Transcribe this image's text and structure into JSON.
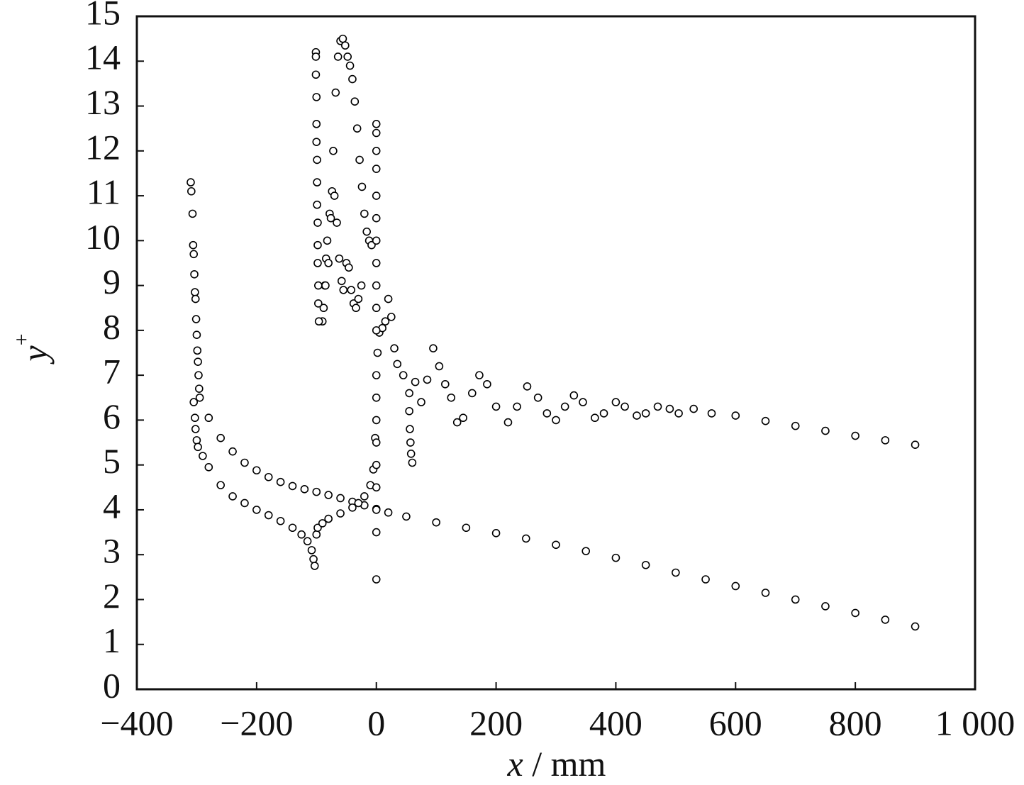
{
  "chart_data": {
    "type": "scatter",
    "xlabel": {
      "var": "x",
      "unit": " / mm"
    },
    "ylabel": {
      "base": "y",
      "sup": "+"
    },
    "xlim": [
      -400,
      1000
    ],
    "ylim": [
      0,
      15
    ],
    "xticks": [
      {
        "value": -400,
        "label": "−400"
      },
      {
        "value": -200,
        "label": "−200"
      },
      0,
      200,
      400,
      600,
      800,
      {
        "value": 1000,
        "label": "1 000"
      }
    ],
    "yticks": [
      0,
      1,
      2,
      3,
      4,
      5,
      6,
      7,
      8,
      9,
      10,
      11,
      12,
      13,
      14,
      15
    ],
    "series": [
      {
        "color": "#000000",
        "x": [
          -310,
          -309,
          -307,
          -306,
          -305,
          -304,
          -303,
          -302,
          -301,
          -300,
          -299,
          -298,
          -297,
          -296,
          -295,
          -280,
          -260,
          -240,
          -220,
          -200,
          -180,
          -160,
          -140,
          -120,
          -100,
          -80,
          -60,
          -40,
          -20,
          0,
          20,
          50,
          100,
          150,
          200,
          250,
          300,
          350,
          400,
          450,
          500,
          550,
          600,
          650,
          700,
          750,
          800,
          850,
          900
        ],
        "values": [
          11.3,
          11.1,
          10.6,
          9.9,
          9.7,
          9.25,
          8.85,
          8.7,
          8.25,
          7.9,
          7.55,
          7.3,
          7.0,
          6.7,
          6.5,
          6.05,
          5.6,
          5.3,
          5.05,
          4.88,
          4.73,
          4.62,
          4.53,
          4.46,
          4.4,
          4.33,
          4.26,
          4.18,
          4.1,
          4.02,
          3.94,
          3.85,
          3.72,
          3.6,
          3.48,
          3.36,
          3.22,
          3.08,
          2.93,
          2.77,
          2.6,
          2.45,
          2.3,
          2.15,
          2.0,
          1.85,
          1.7,
          1.55,
          1.4
        ]
      },
      {
        "color": "#000000",
        "x": [
          -305,
          -303,
          -302,
          -300,
          -298,
          -290,
          -280,
          -260,
          -240,
          -220,
          -200,
          -180,
          -160,
          -140,
          -125,
          -115,
          -108,
          -105,
          -103,
          -100,
          -98,
          -90,
          -80,
          -60,
          -40,
          -30,
          -20,
          -10,
          -5,
          -2,
          0,
          2,
          5,
          10,
          15,
          20,
          25,
          30,
          35,
          45,
          55,
          65,
          75,
          85,
          95,
          105,
          115,
          125,
          135,
          145,
          160,
          172,
          185,
          200,
          220,
          235,
          252,
          270,
          285,
          300,
          315,
          330,
          345,
          365,
          380,
          400,
          415,
          435,
          450,
          470,
          490,
          505,
          530,
          560,
          600,
          650,
          700,
          750,
          800,
          850,
          900
        ],
        "values": [
          6.4,
          6.05,
          5.8,
          5.55,
          5.4,
          5.2,
          4.95,
          4.55,
          4.3,
          4.15,
          4.0,
          3.88,
          3.75,
          3.6,
          3.45,
          3.3,
          3.1,
          2.9,
          2.75,
          3.45,
          3.6,
          3.7,
          3.8,
          3.92,
          4.05,
          4.15,
          4.3,
          4.55,
          4.9,
          5.6,
          6.5,
          7.5,
          7.95,
          8.05,
          8.2,
          8.7,
          8.3,
          7.6,
          7.25,
          7.0,
          6.6,
          6.85,
          6.4,
          6.9,
          7.6,
          7.2,
          6.8,
          6.5,
          5.95,
          6.05,
          6.6,
          7.0,
          6.8,
          6.3,
          5.95,
          6.3,
          6.75,
          6.5,
          6.15,
          6.0,
          6.3,
          6.55,
          6.4,
          6.05,
          6.15,
          6.4,
          6.3,
          6.1,
          6.15,
          6.3,
          6.25,
          6.15,
          6.25,
          6.15,
          6.1,
          5.98,
          5.87,
          5.76,
          5.65,
          5.55,
          5.45
        ]
      },
      {
        "color": "#000000",
        "x": [
          -90,
          -88,
          -86,
          -84,
          -82,
          -78,
          -74,
          -70,
          -66,
          -62,
          -58,
          -55,
          -50,
          -46,
          -42,
          -38,
          -34,
          -30,
          -25,
          -85,
          -80,
          -76,
          -72,
          -68,
          -64,
          -60,
          -56,
          -52,
          -48,
          -44,
          -40,
          -36,
          -32,
          -28,
          -24,
          -20,
          -16,
          -12,
          -8
        ],
        "values": [
          8.2,
          8.5,
          9.0,
          9.6,
          10.0,
          10.6,
          11.1,
          11.0,
          10.4,
          9.6,
          9.1,
          8.9,
          9.5,
          9.4,
          8.9,
          8.6,
          8.5,
          8.7,
          9.0,
          9.0,
          9.5,
          10.5,
          12.0,
          13.3,
          14.1,
          14.45,
          14.5,
          14.35,
          14.1,
          13.9,
          13.6,
          13.1,
          12.5,
          11.8,
          11.2,
          10.6,
          10.2,
          10.0,
          9.9
        ]
      },
      {
        "color": "#000000",
        "x": [
          -101,
          -101,
          -101,
          -100,
          -100,
          -100,
          -99,
          -99,
          -99,
          -98,
          -98,
          -98,
          -97,
          -97,
          -96,
          0,
          0,
          0,
          0,
          0,
          0,
          0,
          0,
          0,
          0,
          0,
          0,
          0,
          0,
          0,
          0,
          0,
          0,
          0,
          55,
          56,
          57,
          58,
          60
        ],
        "values": [
          14.2,
          14.1,
          13.7,
          13.2,
          12.6,
          12.2,
          11.8,
          11.3,
          10.8,
          10.4,
          9.9,
          9.5,
          9.0,
          8.6,
          8.2,
          12.6,
          12.4,
          12.0,
          11.6,
          11.0,
          10.5,
          10.0,
          9.5,
          9.0,
          8.5,
          8.0,
          7.0,
          6.0,
          5.5,
          5.0,
          4.5,
          4.0,
          3.5,
          2.45,
          6.2,
          5.8,
          5.5,
          5.25,
          5.05
        ]
      }
    ]
  }
}
